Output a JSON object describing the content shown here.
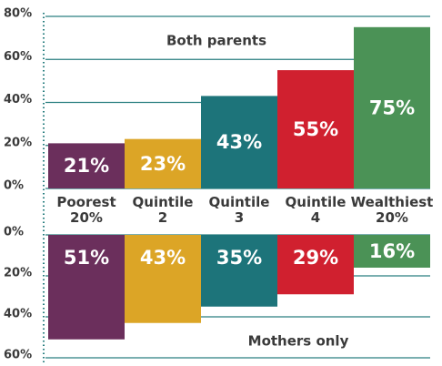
{
  "chart_data": [
    {
      "type": "bar",
      "title": "Both parents",
      "categories": [
        "Poorest 20%",
        "Quintile 2",
        "Quintile 3",
        "Quintile 4",
        "Wealthiest 20%"
      ],
      "values": [
        21,
        23,
        43,
        55,
        75
      ],
      "value_labels": [
        "21%",
        "23%",
        "43%",
        "55%",
        "75%"
      ],
      "colors": [
        "#6b2f5c",
        "#dca526",
        "#1d747a",
        "#d0202f",
        "#4b9256"
      ],
      "ylim": [
        0,
        80
      ],
      "yticks": [
        {
          "value": 0,
          "label": "0%"
        },
        {
          "value": 20,
          "label": "20%"
        },
        {
          "value": 40,
          "label": "40%"
        },
        {
          "value": 60,
          "label": "60%"
        },
        {
          "value": 80,
          "label": "80%"
        }
      ],
      "grid": true
    },
    {
      "type": "bar",
      "title": "Mothers only",
      "direction": "down",
      "values": [
        51,
        43,
        35,
        29,
        16
      ],
      "value_labels": [
        "51%",
        "43%",
        "35%",
        "29%",
        "16%"
      ],
      "colors": [
        "#6b2f5c",
        "#dca526",
        "#1d747a",
        "#d0202f",
        "#4b9256"
      ],
      "ylim": [
        0,
        60
      ],
      "yticks": [
        {
          "value": 0,
          "label": "0%"
        },
        {
          "value": 20,
          "label": "20%"
        },
        {
          "value": 40,
          "label": "40%"
        },
        {
          "value": 60,
          "label": "60%"
        }
      ],
      "grid": true
    }
  ]
}
